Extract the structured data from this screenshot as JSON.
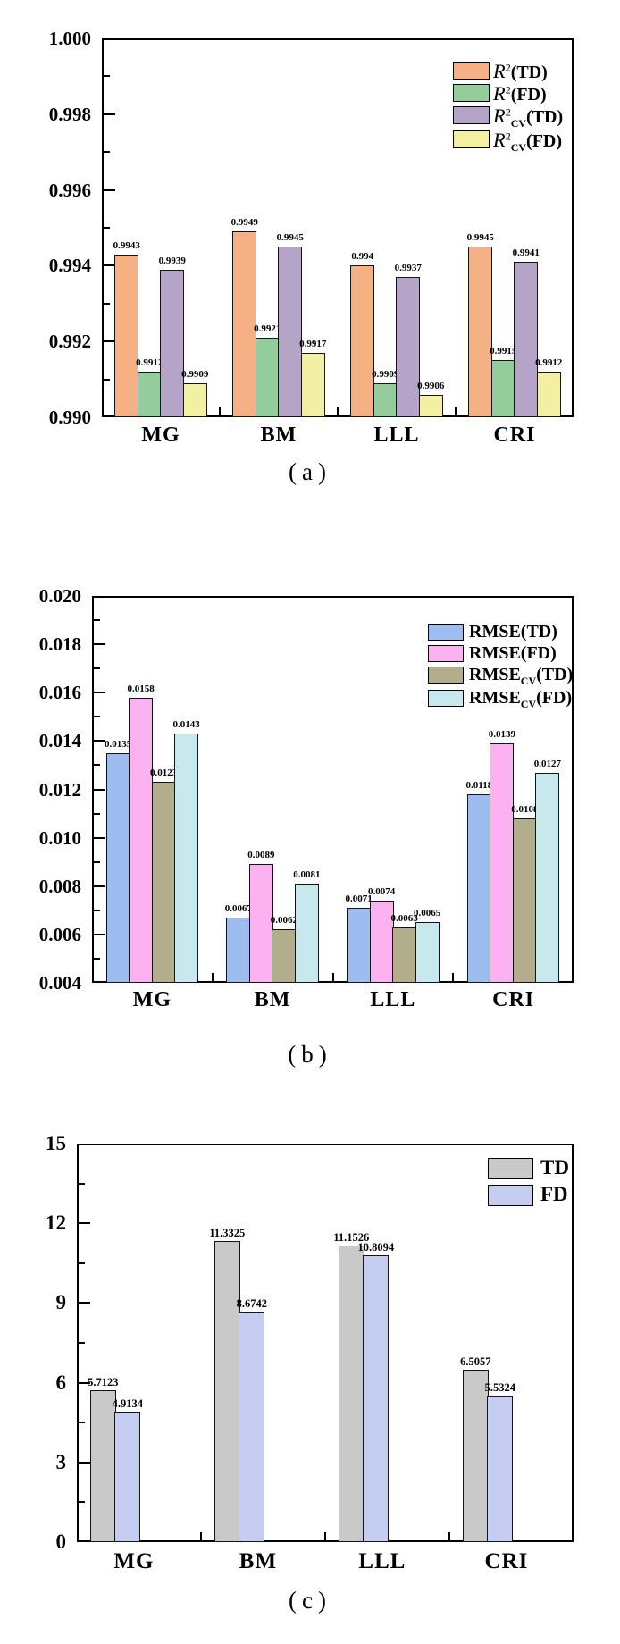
{
  "figure": {
    "background": "#ffffff",
    "panel_count": 3
  },
  "chart_data": [
    {
      "id": "a",
      "type": "bar",
      "caption": "(a)",
      "title": "",
      "xlabel": "",
      "ylabel": "",
      "grid": false,
      "legend_position": "top-right",
      "categories": [
        "MG",
        "BM",
        "LLL",
        "CRI"
      ],
      "ylim": [
        0.99,
        1.0
      ],
      "y_major_step": 0.002,
      "y_tick_labels": [
        "0.990",
        "0.992",
        "0.994",
        "0.996",
        "0.998",
        "1.000"
      ],
      "series": [
        {
          "name": "R2(TD)",
          "label_parts": {
            "main": "R",
            "sup": "2",
            "sub": "",
            "rest": "(TD)"
          },
          "color": "#F5B183",
          "values": [
            0.9943,
            0.9949,
            0.994,
            0.9945
          ],
          "value_labels": [
            "0.9943",
            "0.9949",
            "0.994",
            "0.9945"
          ]
        },
        {
          "name": "R2(FD)",
          "label_parts": {
            "main": "R",
            "sup": "2",
            "sub": "",
            "rest": "(FD)"
          },
          "color": "#92CD9B",
          "values": [
            0.9912,
            0.9921,
            0.9909,
            0.9915
          ],
          "value_labels": [
            "0.9912",
            "0.9921",
            "0.9909",
            "0.9915"
          ]
        },
        {
          "name": "R2_CV(TD)",
          "label_parts": {
            "main": "R",
            "sup": "2",
            "sub": "CV",
            "rest": "(TD)"
          },
          "color": "#B4A5C8",
          "values": [
            0.9939,
            0.9945,
            0.9937,
            0.9941
          ],
          "value_labels": [
            "0.9939",
            "0.9945",
            "0.9937",
            "0.9941"
          ]
        },
        {
          "name": "R2_CV(FD)",
          "label_parts": {
            "main": "R",
            "sup": "2",
            "sub": "CV",
            "rest": "(FD)"
          },
          "color": "#F3F0A4",
          "values": [
            0.9909,
            0.9917,
            0.9906,
            0.9912
          ],
          "value_labels": [
            "0.9909",
            "0.9917",
            "0.9906",
            "0.9912"
          ]
        }
      ]
    },
    {
      "id": "b",
      "type": "bar",
      "caption": "(b)",
      "title": "",
      "xlabel": "",
      "ylabel": "",
      "grid": false,
      "legend_position": "top-right",
      "categories": [
        "MG",
        "BM",
        "LLL",
        "CRI"
      ],
      "ylim": [
        0.004,
        0.02
      ],
      "y_major_step": 0.002,
      "y_tick_labels": [
        "0.004",
        "0.006",
        "0.008",
        "0.010",
        "0.012",
        "0.014",
        "0.016",
        "0.018",
        "0.020"
      ],
      "series": [
        {
          "name": "RMSE(TD)",
          "label_parts": {
            "main": "RMSE",
            "sup": "",
            "sub": "",
            "rest": "(TD)"
          },
          "color": "#9DBCF0",
          "values": [
            0.0135,
            0.0067,
            0.0071,
            0.0118
          ],
          "value_labels": [
            "0.0135",
            "0.0067",
            "0.0071",
            "0.0118"
          ]
        },
        {
          "name": "RMSE(FD)",
          "label_parts": {
            "main": "RMSE",
            "sup": "",
            "sub": "",
            "rest": "(FD)"
          },
          "color": "#FCB2F0",
          "values": [
            0.0158,
            0.0089,
            0.0074,
            0.0139
          ],
          "value_labels": [
            "0.0158",
            "0.0089",
            "0.0074",
            "0.0139"
          ]
        },
        {
          "name": "RMSE_CV(TD)",
          "label_parts": {
            "main": "RMSE",
            "sup": "",
            "sub": "CV",
            "rest": "(TD)"
          },
          "color": "#B2AD8B",
          "values": [
            0.0123,
            0.0062,
            0.0063,
            0.0108
          ],
          "value_labels": [
            "0.0123",
            "0.0062",
            "0.0063",
            "0.0108"
          ]
        },
        {
          "name": "RMSE_CV(FD)",
          "label_parts": {
            "main": "RMSE",
            "sup": "",
            "sub": "CV",
            "rest": "(FD)"
          },
          "color": "#C7E9ED",
          "values": [
            0.0143,
            0.0081,
            0.0065,
            0.0127
          ],
          "value_labels": [
            "0.0143",
            "0.0081",
            "0.0065",
            "0.0127"
          ]
        }
      ]
    },
    {
      "id": "c",
      "type": "bar",
      "caption": "(c)",
      "title": "",
      "xlabel": "",
      "ylabel": "",
      "grid": false,
      "legend_position": "top-right",
      "categories": [
        "MG",
        "BM",
        "LLL",
        "CRI"
      ],
      "ylim": [
        0,
        15
      ],
      "y_major_step": 3,
      "y_tick_labels": [
        "0",
        "3",
        "6",
        "9",
        "12",
        "15"
      ],
      "series": [
        {
          "name": "TD",
          "label_parts": {
            "main": "TD",
            "sup": "",
            "sub": "",
            "rest": ""
          },
          "color": "#C9C9C9",
          "values": [
            5.7123,
            11.3325,
            11.1526,
            6.5057
          ],
          "value_labels": [
            "5.7123",
            "11.3325",
            "11.1526",
            "6.5057"
          ]
        },
        {
          "name": "FD",
          "label_parts": {
            "main": "FD",
            "sup": "",
            "sub": "",
            "rest": ""
          },
          "color": "#C5CDF3",
          "values": [
            4.9134,
            8.6742,
            10.8094,
            5.5324
          ],
          "value_labels": [
            "4.9134",
            "8.6742",
            "10.8094",
            "5.5324"
          ]
        }
      ]
    }
  ]
}
